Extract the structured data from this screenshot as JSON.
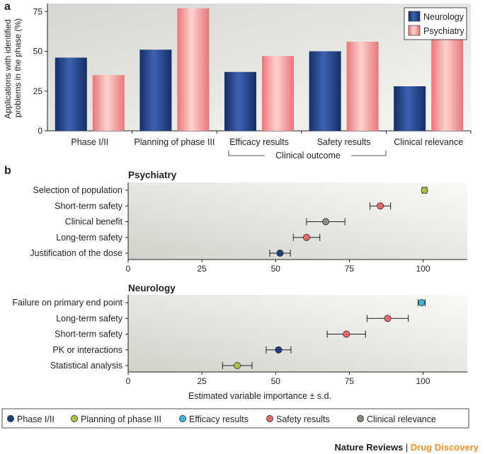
{
  "chart_data": [
    {
      "panel": "a",
      "type": "bar",
      "ylabel": "Applications with identified problems in the phase (%)",
      "ylim": [
        0,
        80
      ],
      "yticks": [
        0,
        25,
        50,
        75
      ],
      "categories": [
        "Phase I/II",
        "Planning of phase III",
        "Efficacy results",
        "Safety results",
        "Clinical relevance"
      ],
      "series": [
        {
          "name": "Neurology",
          "color": "#1f3f8a",
          "values": [
            46,
            51,
            37,
            50,
            28
          ]
        },
        {
          "name": "Psychiatry",
          "color": "#f08a8a",
          "values": [
            35,
            77,
            47,
            56,
            60
          ]
        }
      ],
      "group_label": "Clinical outcome",
      "legend": "top-right"
    },
    {
      "panel": "b",
      "type": "scatter",
      "xlabel": "Estimated variable importance ± s.d.",
      "xlim": [
        0,
        115
      ],
      "xticks": [
        0,
        25,
        50,
        75,
        100
      ],
      "legend": [
        {
          "name": "Phase I/II",
          "color": "#1d3f7a"
        },
        {
          "name": "Planning of phase III",
          "color": "#a8c34a"
        },
        {
          "name": "Efficacy results",
          "color": "#3fb3d8"
        },
        {
          "name": "Safety results",
          "color": "#e8676b"
        },
        {
          "name": "Clinical relevance",
          "color": "#8a8a80"
        }
      ],
      "subplots": [
        {
          "title": "Psychiatry",
          "points": [
            {
              "label": "Selection of population",
              "value": 100.5,
              "sd": 0.8,
              "category": 1
            },
            {
              "label": "Short-term safety",
              "value": 85.5,
              "sd": 3.5,
              "category": 3
            },
            {
              "label": "Clinical benefit",
              "value": 67,
              "sd": 6.5,
              "category": 4
            },
            {
              "label": "Long-term safety",
              "value": 60.5,
              "sd": 4.5,
              "category": 3
            },
            {
              "label": "Justification of the dose",
              "value": 51.5,
              "sd": 3.5,
              "category": 0
            }
          ]
        },
        {
          "title": "Neurology",
          "points": [
            {
              "label": "Failure on primary end point",
              "value": 99.5,
              "sd": 1.2,
              "category": 2
            },
            {
              "label": "Long-term safety",
              "value": 88,
              "sd": 7,
              "category": 3
            },
            {
              "label": "Short-term safety",
              "value": 74,
              "sd": 6.5,
              "category": 3
            },
            {
              "label": "PK or interactions",
              "value": 51,
              "sd": 4.2,
              "category": 0
            },
            {
              "label": "Statistical analysis",
              "value": 37,
              "sd": 5,
              "category": 1
            }
          ]
        }
      ]
    }
  ],
  "footer": {
    "journal": "Nature Reviews",
    "separator": "|",
    "title": "Drug Discovery"
  }
}
